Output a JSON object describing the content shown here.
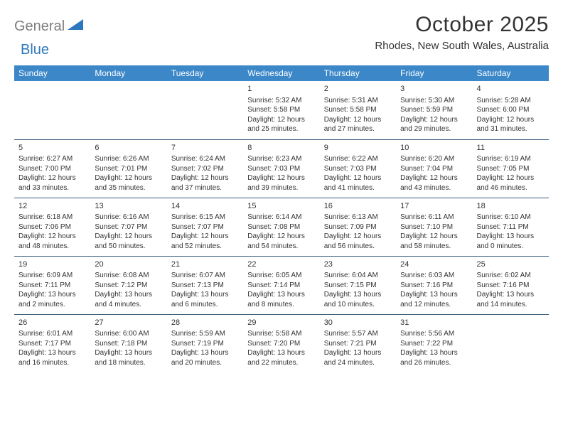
{
  "logo": {
    "part1": "General",
    "part2": "Blue"
  },
  "title": "October 2025",
  "location": "Rhodes, New South Wales, Australia",
  "colors": {
    "header_bg": "#3b87c8",
    "header_text": "#ffffff",
    "border": "#3b5c7a",
    "text": "#333333",
    "logo_gray": "#7e7e7e",
    "logo_blue": "#2d78bd",
    "background": "#ffffff"
  },
  "day_headers": [
    "Sunday",
    "Monday",
    "Tuesday",
    "Wednesday",
    "Thursday",
    "Friday",
    "Saturday"
  ],
  "weeks": [
    [
      null,
      null,
      null,
      {
        "n": "1",
        "sr": "5:32 AM",
        "ss": "5:58 PM",
        "dl": "12 hours and 25 minutes."
      },
      {
        "n": "2",
        "sr": "5:31 AM",
        "ss": "5:58 PM",
        "dl": "12 hours and 27 minutes."
      },
      {
        "n": "3",
        "sr": "5:30 AM",
        "ss": "5:59 PM",
        "dl": "12 hours and 29 minutes."
      },
      {
        "n": "4",
        "sr": "5:28 AM",
        "ss": "6:00 PM",
        "dl": "12 hours and 31 minutes."
      }
    ],
    [
      {
        "n": "5",
        "sr": "6:27 AM",
        "ss": "7:00 PM",
        "dl": "12 hours and 33 minutes."
      },
      {
        "n": "6",
        "sr": "6:26 AM",
        "ss": "7:01 PM",
        "dl": "12 hours and 35 minutes."
      },
      {
        "n": "7",
        "sr": "6:24 AM",
        "ss": "7:02 PM",
        "dl": "12 hours and 37 minutes."
      },
      {
        "n": "8",
        "sr": "6:23 AM",
        "ss": "7:03 PM",
        "dl": "12 hours and 39 minutes."
      },
      {
        "n": "9",
        "sr": "6:22 AM",
        "ss": "7:03 PM",
        "dl": "12 hours and 41 minutes."
      },
      {
        "n": "10",
        "sr": "6:20 AM",
        "ss": "7:04 PM",
        "dl": "12 hours and 43 minutes."
      },
      {
        "n": "11",
        "sr": "6:19 AM",
        "ss": "7:05 PM",
        "dl": "12 hours and 46 minutes."
      }
    ],
    [
      {
        "n": "12",
        "sr": "6:18 AM",
        "ss": "7:06 PM",
        "dl": "12 hours and 48 minutes."
      },
      {
        "n": "13",
        "sr": "6:16 AM",
        "ss": "7:07 PM",
        "dl": "12 hours and 50 minutes."
      },
      {
        "n": "14",
        "sr": "6:15 AM",
        "ss": "7:07 PM",
        "dl": "12 hours and 52 minutes."
      },
      {
        "n": "15",
        "sr": "6:14 AM",
        "ss": "7:08 PM",
        "dl": "12 hours and 54 minutes."
      },
      {
        "n": "16",
        "sr": "6:13 AM",
        "ss": "7:09 PM",
        "dl": "12 hours and 56 minutes."
      },
      {
        "n": "17",
        "sr": "6:11 AM",
        "ss": "7:10 PM",
        "dl": "12 hours and 58 minutes."
      },
      {
        "n": "18",
        "sr": "6:10 AM",
        "ss": "7:11 PM",
        "dl": "13 hours and 0 minutes."
      }
    ],
    [
      {
        "n": "19",
        "sr": "6:09 AM",
        "ss": "7:11 PM",
        "dl": "13 hours and 2 minutes."
      },
      {
        "n": "20",
        "sr": "6:08 AM",
        "ss": "7:12 PM",
        "dl": "13 hours and 4 minutes."
      },
      {
        "n": "21",
        "sr": "6:07 AM",
        "ss": "7:13 PM",
        "dl": "13 hours and 6 minutes."
      },
      {
        "n": "22",
        "sr": "6:05 AM",
        "ss": "7:14 PM",
        "dl": "13 hours and 8 minutes."
      },
      {
        "n": "23",
        "sr": "6:04 AM",
        "ss": "7:15 PM",
        "dl": "13 hours and 10 minutes."
      },
      {
        "n": "24",
        "sr": "6:03 AM",
        "ss": "7:16 PM",
        "dl": "13 hours and 12 minutes."
      },
      {
        "n": "25",
        "sr": "6:02 AM",
        "ss": "7:16 PM",
        "dl": "13 hours and 14 minutes."
      }
    ],
    [
      {
        "n": "26",
        "sr": "6:01 AM",
        "ss": "7:17 PM",
        "dl": "13 hours and 16 minutes."
      },
      {
        "n": "27",
        "sr": "6:00 AM",
        "ss": "7:18 PM",
        "dl": "13 hours and 18 minutes."
      },
      {
        "n": "28",
        "sr": "5:59 AM",
        "ss": "7:19 PM",
        "dl": "13 hours and 20 minutes."
      },
      {
        "n": "29",
        "sr": "5:58 AM",
        "ss": "7:20 PM",
        "dl": "13 hours and 22 minutes."
      },
      {
        "n": "30",
        "sr": "5:57 AM",
        "ss": "7:21 PM",
        "dl": "13 hours and 24 minutes."
      },
      {
        "n": "31",
        "sr": "5:56 AM",
        "ss": "7:22 PM",
        "dl": "13 hours and 26 minutes."
      },
      null
    ]
  ],
  "labels": {
    "sunrise": "Sunrise: ",
    "sunset": "Sunset: ",
    "daylight": "Daylight: "
  }
}
